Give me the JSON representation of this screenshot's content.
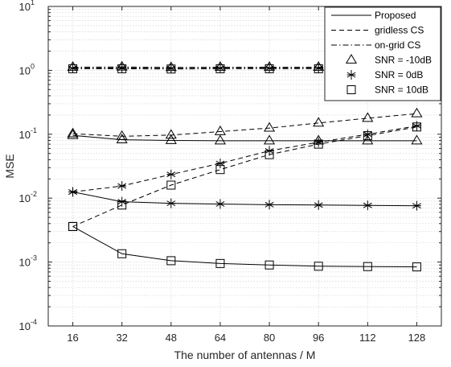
{
  "chart_data": {
    "type": "line",
    "xlabel": "The number of antennas / M",
    "ylabel": "MSE",
    "x": [
      16,
      32,
      48,
      64,
      80,
      96,
      112,
      128
    ],
    "x_ticks": [
      "16",
      "32",
      "48",
      "64",
      "80",
      "96",
      "112",
      "128"
    ],
    "xlim": [
      8,
      136
    ],
    "y_scale": "log",
    "ylim": [
      0.0001,
      10
    ],
    "y_ticks": [
      {
        "value": 10,
        "base": "10",
        "exp": "1"
      },
      {
        "value": 1,
        "base": "10",
        "exp": "0"
      },
      {
        "value": 0.1,
        "base": "10",
        "exp": "-1"
      },
      {
        "value": 0.01,
        "base": "10",
        "exp": "-2"
      },
      {
        "value": 0.001,
        "base": "10",
        "exp": "-3"
      },
      {
        "value": 0.0001,
        "base": "10",
        "exp": "-4"
      }
    ],
    "grid": true,
    "legend_position": "top-right",
    "legend": {
      "line_styles": [
        {
          "label": "Proposed",
          "dash": "solid"
        },
        {
          "label": "gridless CS",
          "dash": "dashed"
        },
        {
          "label": "on-grid CS",
          "dash": "dashdot"
        }
      ],
      "markers": [
        {
          "label": "SNR = -10dB",
          "marker": "triangle"
        },
        {
          "label": "SNR = 0dB",
          "marker": "asterisk"
        },
        {
          "label": "SNR = 10dB",
          "marker": "square"
        }
      ]
    },
    "series": [
      {
        "method": "on-grid CS",
        "snr": "SNR = -10dB",
        "dash": "dashdot",
        "marker": "triangle",
        "values": [
          1.12,
          1.13,
          1.11,
          1.12,
          1.12,
          1.12,
          1.12,
          1.12
        ]
      },
      {
        "method": "on-grid CS",
        "snr": "SNR = 0dB",
        "dash": "dashdot",
        "marker": "asterisk",
        "values": [
          1.08,
          1.09,
          1.07,
          1.08,
          1.08,
          1.08,
          1.08,
          1.08
        ]
      },
      {
        "method": "on-grid CS",
        "snr": "SNR = 10dB",
        "dash": "dashdot",
        "marker": "square",
        "values": [
          1.06,
          1.06,
          1.05,
          1.06,
          1.06,
          1.06,
          1.06,
          1.06
        ]
      },
      {
        "method": "gridless CS",
        "snr": "SNR = -10dB",
        "dash": "dashed",
        "marker": "triangle",
        "values": [
          0.102,
          0.093,
          0.097,
          0.11,
          0.125,
          0.15,
          0.178,
          0.21
        ]
      },
      {
        "method": "Proposed",
        "snr": "SNR = -10dB",
        "dash": "solid",
        "marker": "triangle",
        "values": [
          0.096,
          0.082,
          0.08,
          0.079,
          0.079,
          0.079,
          0.079,
          0.079
        ]
      },
      {
        "method": "gridless CS",
        "snr": "SNR = 0dB",
        "dash": "dashed",
        "marker": "asterisk",
        "values": [
          0.0125,
          0.0155,
          0.0235,
          0.035,
          0.055,
          0.075,
          0.1,
          0.135
        ]
      },
      {
        "method": "Proposed",
        "snr": "SNR = 0dB",
        "dash": "solid",
        "marker": "asterisk",
        "values": [
          0.0125,
          0.0088,
          0.0083,
          0.0081,
          0.0079,
          0.0078,
          0.0077,
          0.0076
        ]
      },
      {
        "method": "gridless CS",
        "snr": "SNR = 10dB",
        "dash": "dashed",
        "marker": "square",
        "values": [
          0.0036,
          0.0078,
          0.016,
          0.028,
          0.048,
          0.07,
          0.095,
          0.13
        ]
      },
      {
        "method": "Proposed",
        "snr": "SNR = 10dB",
        "dash": "solid",
        "marker": "square",
        "values": [
          0.0036,
          0.00135,
          0.00105,
          0.00095,
          0.0009,
          0.00086,
          0.00085,
          0.00084
        ]
      }
    ]
  }
}
